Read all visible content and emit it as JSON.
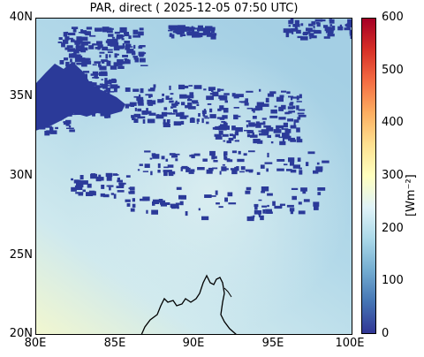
{
  "title": "PAR, direct ( 2025-12-05 07:50 UTC)",
  "map": {
    "lon_range": [
      80,
      100
    ],
    "lat_range": [
      20,
      40
    ],
    "x_ticks": [
      "80E",
      "85E",
      "90E",
      "95E",
      "100E"
    ],
    "y_ticks": [
      "40N",
      "35N",
      "30N",
      "25N",
      "20N"
    ],
    "cloud_color": "#2b3a99",
    "coast_color": "#000000"
  },
  "colorbar": {
    "unit_label": "[Wm⁻²]",
    "ticks": [
      "600",
      "500",
      "400",
      "300",
      "200",
      "100",
      "0"
    ],
    "range": [
      0,
      600
    ],
    "colors": [
      "#313695",
      "#4575b4",
      "#74add1",
      "#abd9e9",
      "#e0f3f8",
      "#ffffbf",
      "#fee090",
      "#fdae61",
      "#f46d43",
      "#d73027",
      "#a50026"
    ]
  }
}
